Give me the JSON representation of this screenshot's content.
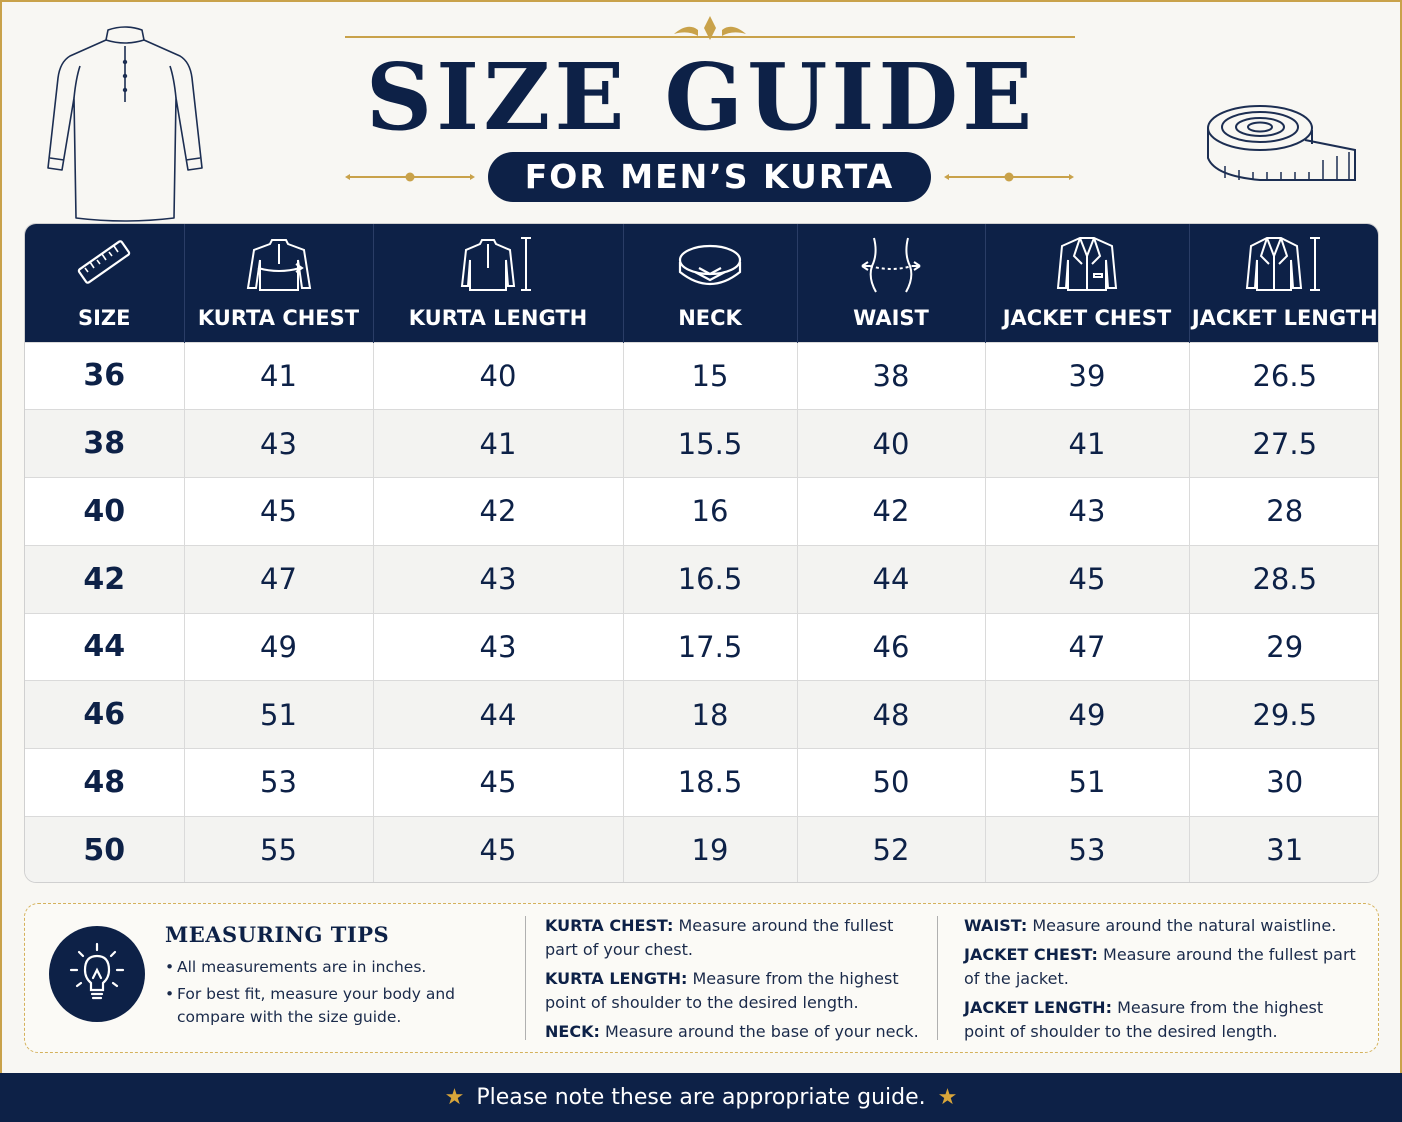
{
  "header": {
    "title": "SIZE GUIDE",
    "subtitle": "FOR MEN’S KURTA"
  },
  "colors": {
    "navy": "#0d2147",
    "gold": "#c9a24a",
    "background": "#f8f7f3"
  },
  "table": {
    "columns": [
      {
        "label": "SIZE",
        "icon": "ruler-icon"
      },
      {
        "label": "KURTA CHEST",
        "icon": "kurta-chest-icon"
      },
      {
        "label": "KURTA LENGTH",
        "icon": "kurta-length-icon"
      },
      {
        "label": "NECK",
        "icon": "collar-icon"
      },
      {
        "label": "WAIST",
        "icon": "waist-icon"
      },
      {
        "label": "JACKET CHEST",
        "icon": "jacket-chest-icon"
      },
      {
        "label": "JACKET LENGTH",
        "icon": "jacket-length-icon"
      }
    ],
    "rows": [
      [
        "36",
        "41",
        "40",
        "15",
        "38",
        "39",
        "26.5"
      ],
      [
        "38",
        "43",
        "41",
        "15.5",
        "40",
        "41",
        "27.5"
      ],
      [
        "40",
        "45",
        "42",
        "16",
        "42",
        "43",
        "28"
      ],
      [
        "42",
        "47",
        "43",
        "16.5",
        "44",
        "45",
        "28.5"
      ],
      [
        "44",
        "49",
        "43",
        "17.5",
        "46",
        "47",
        "29"
      ],
      [
        "46",
        "51",
        "44",
        "18",
        "48",
        "49",
        "29.5"
      ],
      [
        "48",
        "53",
        "45",
        "18.5",
        "50",
        "51",
        "30"
      ],
      [
        "50",
        "55",
        "45",
        "19",
        "52",
        "53",
        "31"
      ]
    ]
  },
  "tips": {
    "heading": "MEASURING TIPS",
    "icon": "lightbulb-icon",
    "bullets": [
      "All measurements are in inches.",
      "For best fit, measure your body and compare with the size guide."
    ],
    "definitions_col1": [
      {
        "term": "KURTA CHEST:",
        "text": "Measure around the fullest part of your chest."
      },
      {
        "term": "KURTA LENGTH:",
        "text": "Measure from the highest point of shoulder to the desired length."
      },
      {
        "term": "NECK:",
        "text": "Measure around the base of your neck."
      }
    ],
    "definitions_col2": [
      {
        "term": "WAIST:",
        "text": "Measure around the natural waistline."
      },
      {
        "term": "JACKET CHEST:",
        "text": "Measure around the fullest part of the jacket."
      },
      {
        "term": "JACKET LENGTH:",
        "text": "Measure from the highest point of shoulder to the desired length."
      }
    ]
  },
  "footer": {
    "note": "Please note these are appropriate guide.",
    "star_icon": "star-icon"
  }
}
